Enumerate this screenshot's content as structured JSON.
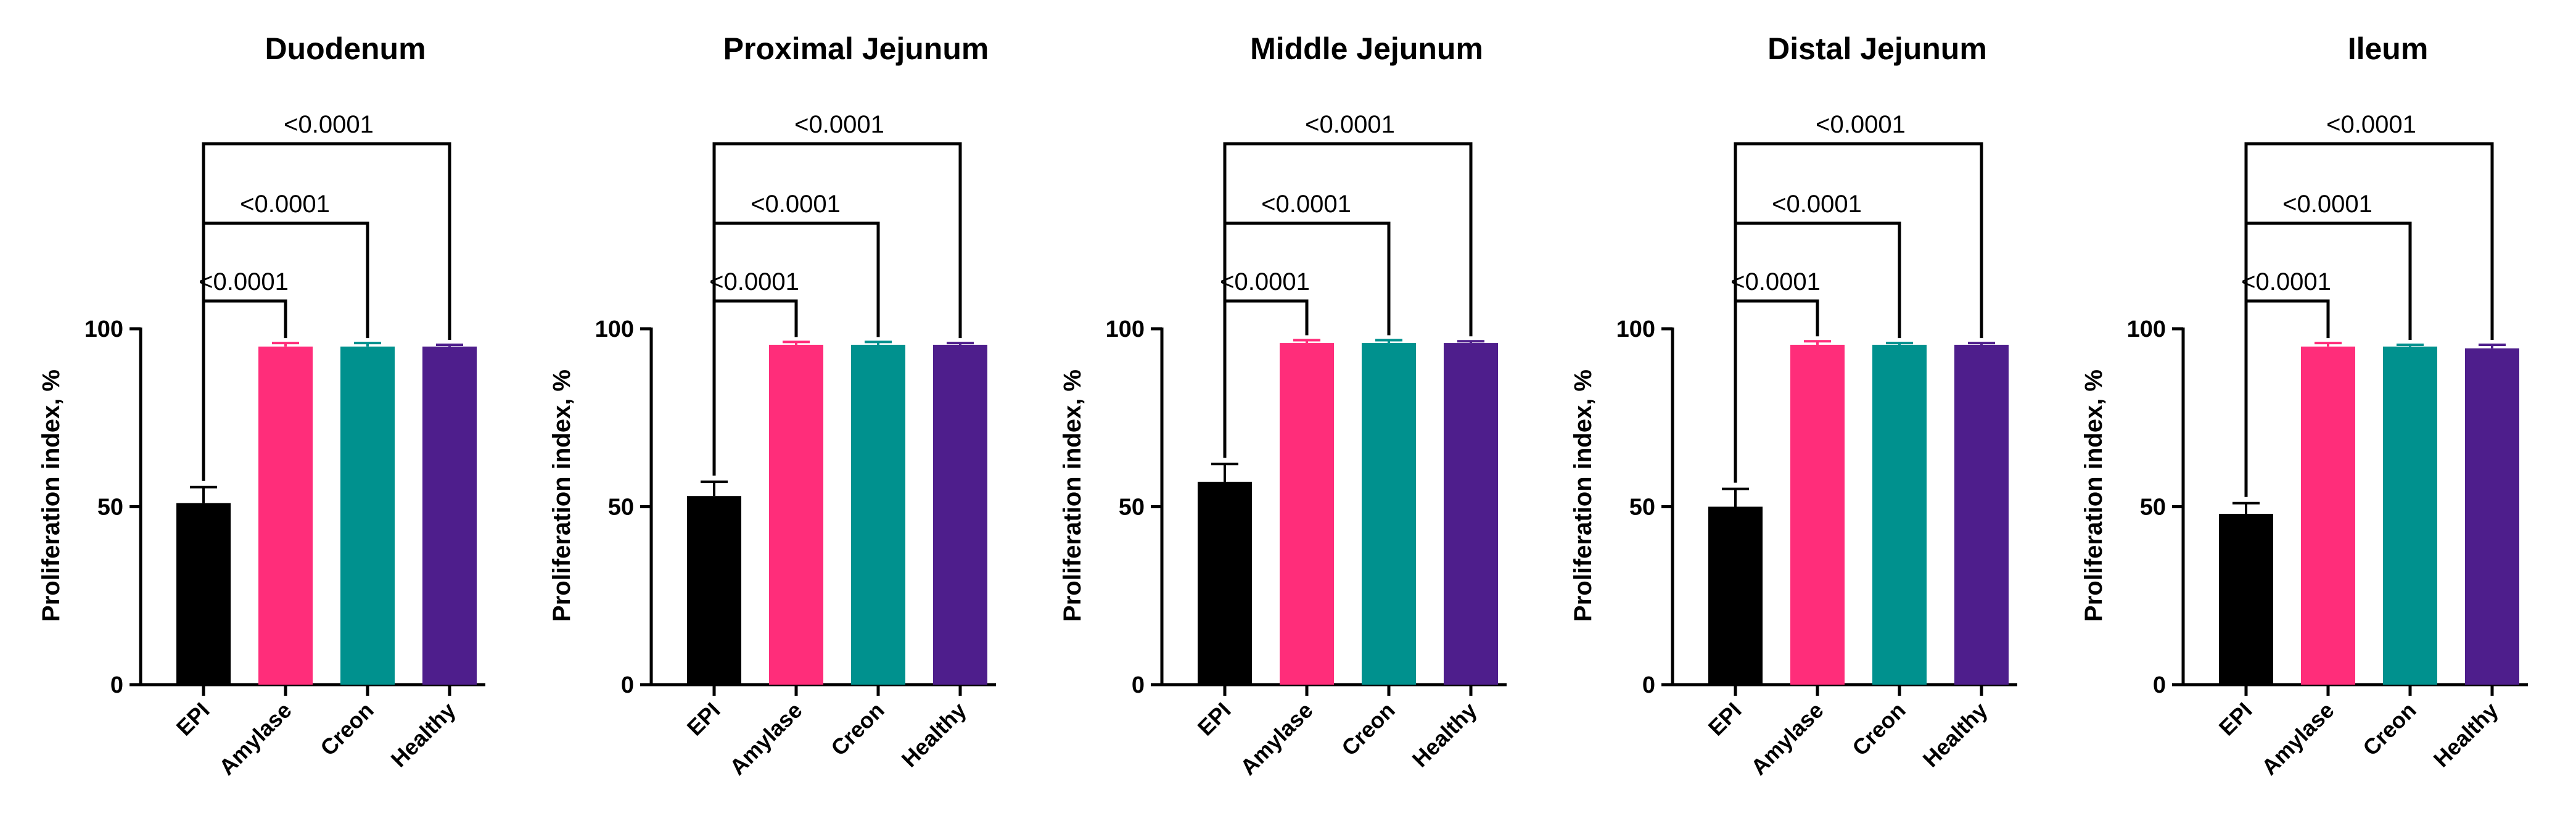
{
  "chart_data": [
    {
      "type": "bar",
      "title": "Duodenum",
      "ylabel": "Proliferation index, %",
      "ylim": [
        0,
        100
      ],
      "yticks": [
        "0",
        "50",
        "100"
      ],
      "categories": [
        "EPI",
        "Amylase",
        "Creon",
        "Healthy"
      ],
      "values": [
        51,
        95,
        95,
        95
      ],
      "errors": [
        4.5,
        1,
        1,
        0.5
      ],
      "colors": [
        "#000000",
        "#FF2D7A",
        "#00918E",
        "#4E1E8C"
      ],
      "comparisons": [
        {
          "from": "EPI",
          "to": "Amylase",
          "label": "<0.0001"
        },
        {
          "from": "EPI",
          "to": "Creon",
          "label": "<0.0001"
        },
        {
          "from": "EPI",
          "to": "Healthy",
          "label": "<0.0001"
        }
      ]
    },
    {
      "type": "bar",
      "title": "Proximal Jejunum",
      "ylabel": "Proliferation index, %",
      "ylim": [
        0,
        100
      ],
      "yticks": [
        "0",
        "50",
        "100"
      ],
      "categories": [
        "EPI",
        "Amylase",
        "Creon",
        "Healthy"
      ],
      "values": [
        53,
        95.5,
        95.5,
        95.5
      ],
      "errors": [
        4,
        0.8,
        0.8,
        0.5
      ],
      "colors": [
        "#000000",
        "#FF2D7A",
        "#00918E",
        "#4E1E8C"
      ],
      "comparisons": [
        {
          "from": "EPI",
          "to": "Amylase",
          "label": "<0.0001"
        },
        {
          "from": "EPI",
          "to": "Creon",
          "label": "<0.0001"
        },
        {
          "from": "EPI",
          "to": "Healthy",
          "label": "<0.0001"
        }
      ]
    },
    {
      "type": "bar",
      "title": "Middle Jejunum",
      "ylabel": "Proliferation index, %",
      "ylim": [
        0,
        100
      ],
      "yticks": [
        "0",
        "50",
        "100"
      ],
      "categories": [
        "EPI",
        "Amylase",
        "Creon",
        "Healthy"
      ],
      "values": [
        57,
        96,
        96,
        96
      ],
      "errors": [
        5,
        0.8,
        0.8,
        0.5
      ],
      "colors": [
        "#000000",
        "#FF2D7A",
        "#00918E",
        "#4E1E8C"
      ],
      "comparisons": [
        {
          "from": "EPI",
          "to": "Amylase",
          "label": "<0.0001"
        },
        {
          "from": "EPI",
          "to": "Creon",
          "label": "<0.0001"
        },
        {
          "from": "EPI",
          "to": "Healthy",
          "label": "<0.0001"
        }
      ]
    },
    {
      "type": "bar",
      "title": "Distal Jejunum",
      "ylabel": "Proliferation index, %",
      "ylim": [
        0,
        100
      ],
      "yticks": [
        "0",
        "50",
        "100"
      ],
      "categories": [
        "EPI",
        "Amylase",
        "Creon",
        "Healthy"
      ],
      "values": [
        50,
        95.5,
        95.5,
        95.5
      ],
      "errors": [
        5,
        1,
        0.5,
        0.5
      ],
      "colors": [
        "#000000",
        "#FF2D7A",
        "#00918E",
        "#4E1E8C"
      ],
      "comparisons": [
        {
          "from": "EPI",
          "to": "Amylase",
          "label": "<0.0001"
        },
        {
          "from": "EPI",
          "to": "Creon",
          "label": "<0.0001"
        },
        {
          "from": "EPI",
          "to": "Healthy",
          "label": "<0.0001"
        }
      ]
    },
    {
      "type": "bar",
      "title": "Ileum",
      "ylabel": "Proliferation index, %",
      "ylim": [
        0,
        100
      ],
      "yticks": [
        "0",
        "50",
        "100"
      ],
      "categories": [
        "EPI",
        "Amylase",
        "Creon",
        "Healthy"
      ],
      "values": [
        48,
        95,
        95,
        94.5
      ],
      "errors": [
        3,
        1,
        0.5,
        1
      ],
      "colors": [
        "#000000",
        "#FF2D7A",
        "#00918E",
        "#4E1E8C"
      ],
      "comparisons": [
        {
          "from": "EPI",
          "to": "Amylase",
          "label": "<0.0001"
        },
        {
          "from": "EPI",
          "to": "Creon",
          "label": "<0.0001"
        },
        {
          "from": "EPI",
          "to": "Healthy",
          "label": "<0.0001"
        }
      ]
    }
  ]
}
